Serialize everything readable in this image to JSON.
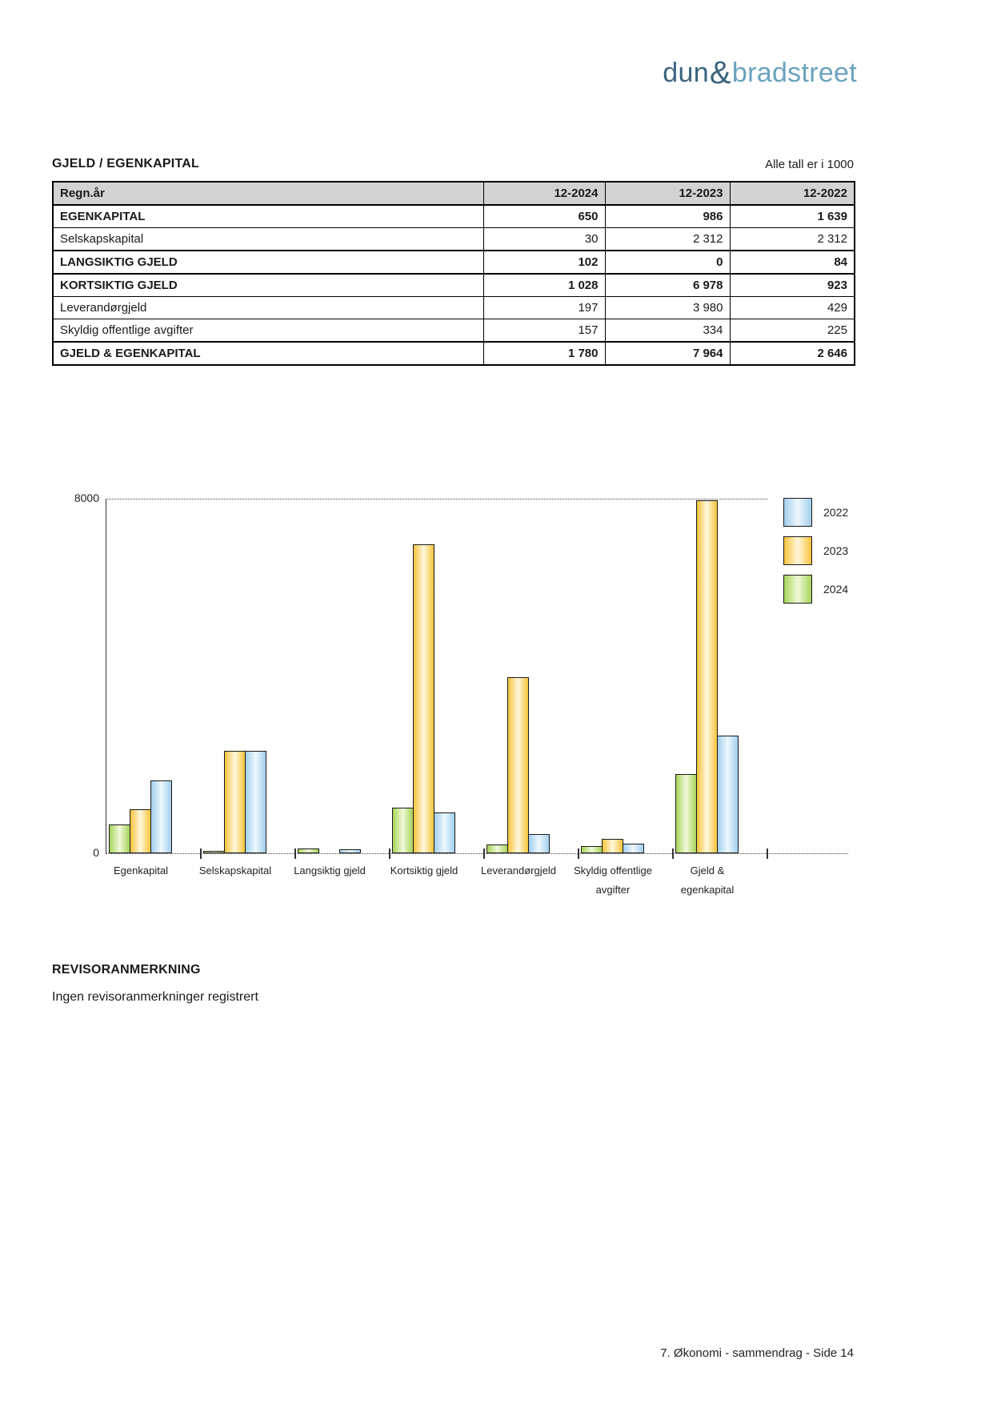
{
  "logo": {
    "part1": "dun",
    "amp": "&",
    "part2": "bradstreet"
  },
  "section": {
    "title": "GJELD / EGENKAPITAL",
    "units_note": "Alle tall er i 1000"
  },
  "table": {
    "columns": [
      "Regn.år",
      "12-2024",
      "12-2023",
      "12-2022"
    ],
    "rows": [
      {
        "label": "EGENKAPITAL",
        "values": [
          "650",
          "986",
          "1 639"
        ],
        "bold": true
      },
      {
        "label": "Selskapskapital",
        "values": [
          "30",
          "2 312",
          "2 312"
        ],
        "bold": false
      },
      {
        "label": "LANGSIKTIG GJELD",
        "values": [
          "102",
          "0",
          "84"
        ],
        "bold": true
      },
      {
        "label": "KORTSIKTIG GJELD",
        "values": [
          "1 028",
          "6 978",
          "923"
        ],
        "bold": true
      },
      {
        "label": "Leverandørgjeld",
        "values": [
          "197",
          "3 980",
          "429"
        ],
        "bold": false
      },
      {
        "label": "Skyldig offentlige avgifter",
        "values": [
          "157",
          "334",
          "225"
        ],
        "bold": false
      },
      {
        "label": "GJELD & EGENKAPITAL",
        "values": [
          "1 780",
          "7 964",
          "2 646"
        ],
        "bold": true
      }
    ]
  },
  "chart_data": {
    "type": "bar",
    "title": "",
    "categories": [
      "Egenkapital",
      "Selskapskapital",
      "Langsiktig gjeld",
      "Kortsiktig gjeld",
      "Leverandørgjeld",
      "Skyldig offentlige avgifter",
      "Gjeld & egenkapital"
    ],
    "category_label_lines": [
      [
        "Egenkapital"
      ],
      [
        "Selskapskapital"
      ],
      [
        "Langsiktig gjeld"
      ],
      [
        "Kortsiktig gjeld"
      ],
      [
        "Leverandørgjeld"
      ],
      [
        "Skyldig offentlige",
        "avgifter"
      ],
      [
        "Gjeld &",
        "egenkapital"
      ]
    ],
    "series": [
      {
        "name": "2024",
        "color": "green",
        "values": [
          650,
          30,
          102,
          1028,
          197,
          157,
          1780
        ]
      },
      {
        "name": "2023",
        "color": "orange",
        "values": [
          986,
          2312,
          0,
          6978,
          3980,
          334,
          7964
        ]
      },
      {
        "name": "2022",
        "color": "blue",
        "values": [
          1639,
          2312,
          84,
          923,
          429,
          225,
          2646
        ]
      }
    ],
    "ylim": [
      0,
      8000
    ],
    "ytick_labels": [
      "0",
      "8000"
    ],
    "grid": "dotted line at y=8000 and dotted baseline at y=0",
    "legend": {
      "position": "right",
      "items": [
        {
          "label": "2022",
          "color": "blue"
        },
        {
          "label": "2023",
          "color": "orange"
        },
        {
          "label": "2024",
          "color": "green"
        }
      ]
    }
  },
  "colors": {
    "logo_dark": "#3a647e",
    "logo_light": "#6aa3bd",
    "table_header_bg": "#d2d2d2",
    "bar_border": "#1a1a1a",
    "green": {
      "edge": "#a6d45a",
      "center": "#f0f9d8"
    },
    "orange": {
      "edge": "#f6c33c",
      "center": "#fff8dd"
    },
    "blue": {
      "edge": "#a2cfec",
      "center": "#edf7fd"
    }
  },
  "revisor": {
    "title": "REVISORANMERKNING",
    "text": "Ingen revisoranmerkninger registrert"
  },
  "footer": {
    "text": "7. Økonomi - sammendrag - Side 14"
  }
}
